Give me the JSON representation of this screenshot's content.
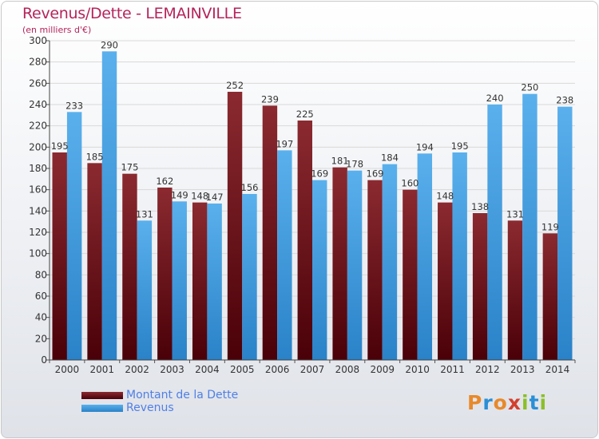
{
  "header": {
    "title": "Revenus/Dette - LEMAINVILLE",
    "subtitle": "(en milliers d'€)"
  },
  "brand": {
    "text": "Proxiti"
  },
  "colors": {
    "debt_top": "#8b2a30",
    "debt_bottom": "#4a0008",
    "revenue_top": "#5ab0ec",
    "revenue_bottom": "#2a82c8",
    "title": "#b5245a",
    "legend_text": "#4f7fe6"
  },
  "chart_data": {
    "type": "bar",
    "title": "Revenus/Dette - LEMAINVILLE",
    "subtitle": "(en milliers d'€)",
    "categories": [
      "2000",
      "2001",
      "2002",
      "2003",
      "2004",
      "2005",
      "2006",
      "2007",
      "2008",
      "2009",
      "2010",
      "2011",
      "2012",
      "2013",
      "2014"
    ],
    "series": [
      {
        "name": "Montant de la Dette",
        "values": [
          195,
          185,
          175,
          162,
          148,
          252,
          239,
          225,
          181,
          169,
          160,
          148,
          138,
          131,
          119
        ]
      },
      {
        "name": "Revenus",
        "values": [
          233,
          290,
          131,
          149,
          147,
          156,
          197,
          169,
          178,
          184,
          194,
          195,
          240,
          250,
          238
        ]
      }
    ],
    "ylim": [
      0,
      300
    ],
    "yticks": [
      0,
      20,
      40,
      60,
      80,
      100,
      120,
      140,
      160,
      180,
      200,
      220,
      240,
      260,
      280,
      300
    ],
    "grid": true,
    "legend_position": "bottom-left"
  }
}
